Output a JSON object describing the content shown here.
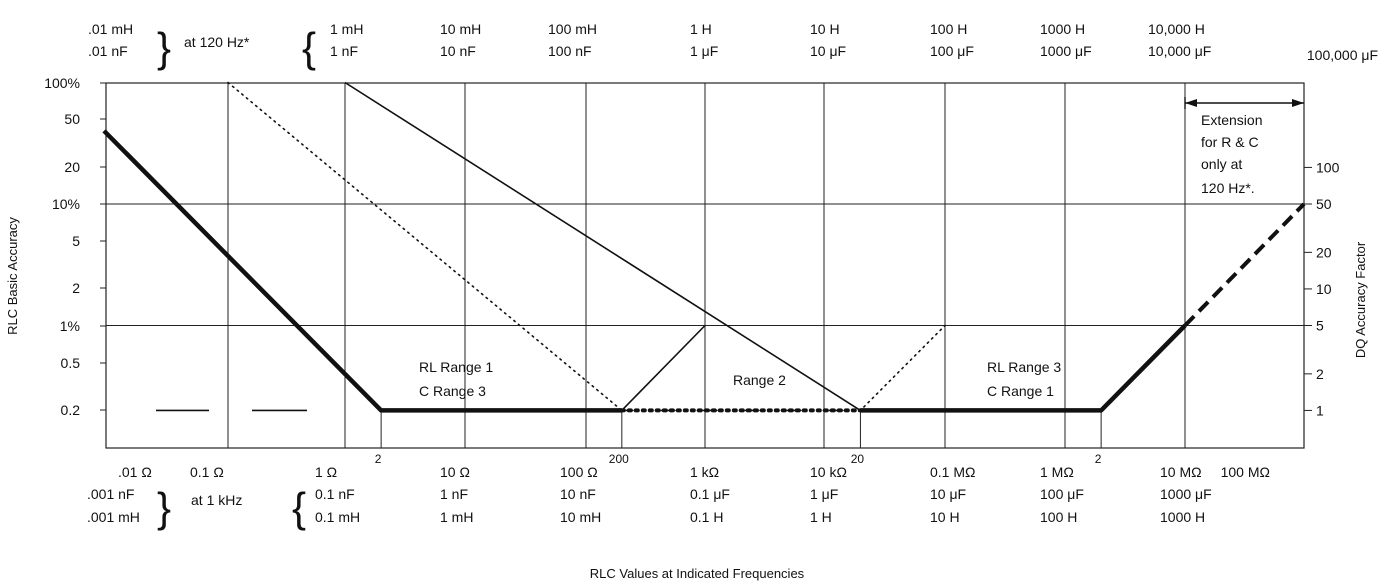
{
  "chart_data": {
    "type": "line",
    "title": "",
    "xlabel": "RLC Values at Indicated Frequencies",
    "ylabel": "RLC Basic Accuracy",
    "y2label": "DQ Accuracy Factor",
    "x_scale": "log",
    "y_scale": "log",
    "ylim_percent": [
      0.13,
      100
    ],
    "y_ticks": [
      {
        "v": 100,
        "label": "100%"
      },
      {
        "v": 50,
        "label": "50"
      },
      {
        "v": 20,
        "label": "20"
      },
      {
        "v": 10,
        "label": "10%"
      },
      {
        "v": 5,
        "label": "5"
      },
      {
        "v": 2,
        "label": "2"
      },
      {
        "v": 1,
        "label": "1%"
      },
      {
        "v": 0.5,
        "label": "0.5"
      },
      {
        "v": 0.2,
        "label": "0.2"
      }
    ],
    "y2_ticks": [
      {
        "v": 20,
        "label": "100"
      },
      {
        "v": 10,
        "label": "50"
      },
      {
        "v": 4,
        "label": "20"
      },
      {
        "v": 2,
        "label": "10"
      },
      {
        "v": 1,
        "label": "5"
      },
      {
        "v": 0.4,
        "label": "2"
      },
      {
        "v": 0.2,
        "label": "1"
      }
    ],
    "bottom_axis": {
      "resistance": [
        "",
        ".01 Ω",
        "0.1 Ω",
        "1 Ω",
        "10 Ω",
        "100 Ω",
        "1 kΩ",
        "10 kΩ",
        "0.1 MΩ",
        "1 MΩ",
        "10 MΩ",
        "100 MΩ"
      ],
      "capacitance": [
        ".001 nF",
        "",
        "",
        "0.1 nF",
        "1 nF",
        "10 nF",
        "0.1 μF",
        "1 μF",
        "10 μF",
        "100 μF",
        "1000 μF",
        ""
      ],
      "inductance": [
        ".001 mH",
        "",
        "",
        "0.1 mH",
        "1 mH",
        "10 mH",
        "0.1 H",
        "1 H",
        "10 H",
        "100 H",
        "1000 H",
        ""
      ],
      "freq_note": "at 1 kHz",
      "secondary_marks": [
        {
          "x": 2,
          "label": "2"
        },
        {
          "x": 200,
          "label": "200"
        },
        {
          "x": 20000,
          "label": "20"
        },
        {
          "x": 2000000,
          "label": "2"
        }
      ]
    },
    "top_axis": {
      "inductance": [
        ".01 mH",
        "",
        "",
        "1 mH",
        "10 mH",
        "100 mH",
        "1 H",
        "10 H",
        "100 H",
        "1000 H",
        "10,000 H",
        ""
      ],
      "capacitance": [
        ".01 nF",
        "",
        "",
        "1 nF",
        "10 nF",
        "100 nF",
        "1 μF",
        "10 μF",
        "100 μF",
        "1000 μF",
        "10,000 μF",
        "100,000 μF"
      ],
      "freq_note": "at 120 Hz*"
    },
    "series": [
      {
        "style": "thick",
        "x": [
          0.01,
          2,
          200
        ],
        "y": [
          40,
          0.2,
          0.2
        ]
      },
      {
        "style": "thin",
        "x": [
          200,
          1000
        ],
        "y": [
          0.2,
          1
        ]
      },
      {
        "style": "dotted",
        "x": [
          0.1,
          200,
          20000,
          100000
        ],
        "y": [
          100,
          0.2,
          0.2,
          1
        ]
      },
      {
        "style": "thin",
        "x": [
          1,
          20000
        ],
        "y": [
          100,
          0.2
        ]
      },
      {
        "style": "thick",
        "x": [
          20000,
          2000000,
          10000000
        ],
        "y": [
          0.2,
          0.2,
          1
        ]
      },
      {
        "style": "dashed",
        "x": [
          10000000,
          100000000
        ],
        "y": [
          1,
          10
        ]
      }
    ],
    "annotations": [
      {
        "lines": [
          "RL Range 1",
          "C Range 3"
        ]
      },
      {
        "lines": [
          "Range 2"
        ]
      },
      {
        "lines": [
          "RL Range 3",
          "C Range 1"
        ]
      },
      {
        "lines": [
          "Extension",
          "for R & C",
          "only at",
          "120 Hz*."
        ]
      }
    ],
    "extension_arrow": {
      "x": [
        10000000,
        100000000
      ]
    }
  }
}
